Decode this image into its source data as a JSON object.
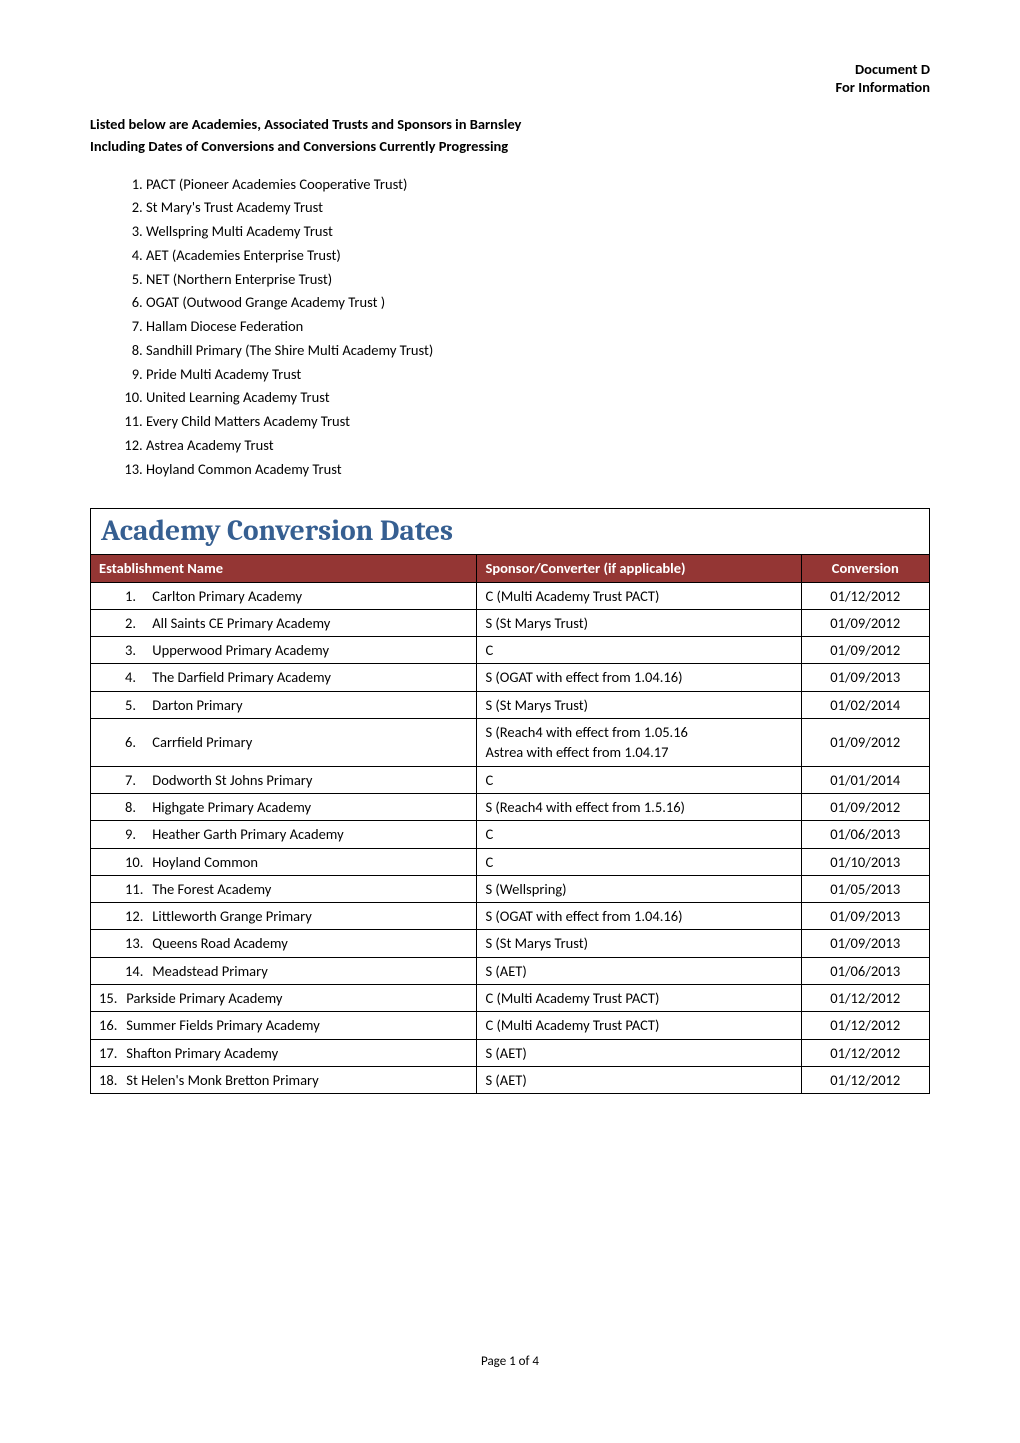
{
  "header": {
    "doc_title": "Document D",
    "info_line": "For Information"
  },
  "subheading_line1": "Listed below are Academies, Associated Trusts and Sponsors in Barnsley",
  "subheading_line2": "Including Dates of Conversions and Conversions Currently Progressing",
  "trusts_list": [
    "PACT (Pioneer Academies Cooperative Trust)",
    "St Mary's Trust Academy Trust",
    "Wellspring Multi Academy Trust",
    "AET (Academies Enterprise Trust)",
    "NET (Northern Enterprise Trust)",
    "OGAT (Outwood Grange Academy Trust )",
    "Hallam Diocese Federation",
    "Sandhill Primary (The Shire Multi Academy Trust)",
    "Pride Multi Academy Trust",
    "United  Learning Academy Trust",
    "Every Child Matters Academy Trust",
    "Astrea Academy Trust",
    "Hoyland Common Academy Trust"
  ],
  "section_title": {
    "text": "Academy Conversion Dates",
    "color": "#365f91",
    "font_size_pt": 22
  },
  "table": {
    "header_bg": "#943634",
    "header_text_color": "#ffffff",
    "columns": [
      {
        "label": "Establishment Name",
        "align": "left"
      },
      {
        "label": "Sponsor/Converter (if applicable)",
        "align": "left"
      },
      {
        "label": "Conversion",
        "align": "center"
      }
    ],
    "rows": [
      {
        "num": "1.",
        "name": "Carlton Primary Academy",
        "sponsor": "C (Multi  Academy Trust PACT)",
        "conv": "01/12/2012",
        "indent": true
      },
      {
        "num": "2.",
        "name": "All Saints CE Primary Academy",
        "sponsor": "S (St Marys Trust)",
        "conv": "01/09/2012",
        "indent": true
      },
      {
        "num": "3.",
        "name": "Upperwood Primary Academy",
        "sponsor": "C",
        "conv": "01/09/2012",
        "indent": true
      },
      {
        "num": "4.",
        "name": "The Darfield Primary Academy",
        "sponsor": "S (OGAT with effect from 1.04.16)",
        "conv": "01/09/2013",
        "indent": true
      },
      {
        "num": "5.",
        "name": "Darton Primary",
        "sponsor": "S (St Marys Trust)",
        "conv": "01/02/2014",
        "indent": true
      },
      {
        "num": "6.",
        "name": "Carrfield Primary",
        "sponsor": "S (Reach4 with effect from 1.05.16\nAstrea with effect from 1.04.17",
        "conv": "01/09/2012",
        "indent": true
      },
      {
        "num": "7.",
        "name": "Dodworth St Johns Primary",
        "sponsor": "C",
        "conv": "01/01/2014",
        "indent": true
      },
      {
        "num": "8.",
        "name": "Highgate Primary Academy",
        "sponsor": "S (Reach4 with effect from 1.5.16)",
        "conv": "01/09/2012",
        "indent": true
      },
      {
        "num": "9.",
        "name": "Heather Garth Primary Academy",
        "sponsor": "C",
        "conv": "01/06/2013",
        "indent": true
      },
      {
        "num": "10.",
        "name": "Hoyland Common",
        "sponsor": "C",
        "conv": "01/10/2013",
        "indent": true
      },
      {
        "num": "11.",
        "name": "The Forest Academy",
        "sponsor": "S (Wellspring)",
        "conv": "01/05/2013",
        "indent": true
      },
      {
        "num": "12.",
        "name": "Littleworth Grange Primary",
        "sponsor": "S (OGAT with effect from 1.04.16)",
        "conv": "01/09/2013",
        "indent": true
      },
      {
        "num": "13.",
        "name": "Queens Road Academy",
        "sponsor": "S (St Marys Trust)",
        "conv": "01/09/2013",
        "indent": true
      },
      {
        "num": "14.",
        "name": "Meadstead Primary",
        "sponsor": "S (AET)",
        "conv": "01/06/2013",
        "indent": true
      },
      {
        "num": "15.",
        "name": "Parkside Primary Academy",
        "sponsor": "C (Multi Academy Trust PACT)",
        "conv": "01/12/2012",
        "indent": false
      },
      {
        "num": "16.",
        "name": "Summer Fields Primary Academy",
        "sponsor": "C (Multi Academy Trust PACT)",
        "conv": "01/12/2012",
        "indent": false
      },
      {
        "num": "17.",
        "name": "Shafton Primary Academy",
        "sponsor": "S (AET)",
        "conv": "01/12/2012",
        "indent": false
      },
      {
        "num": "18.",
        "name": "St Helen's Monk Bretton Primary",
        "sponsor": "S (AET)",
        "conv": "01/12/2012",
        "indent": false
      }
    ]
  },
  "footer": {
    "text": "Page 1 of 4"
  }
}
